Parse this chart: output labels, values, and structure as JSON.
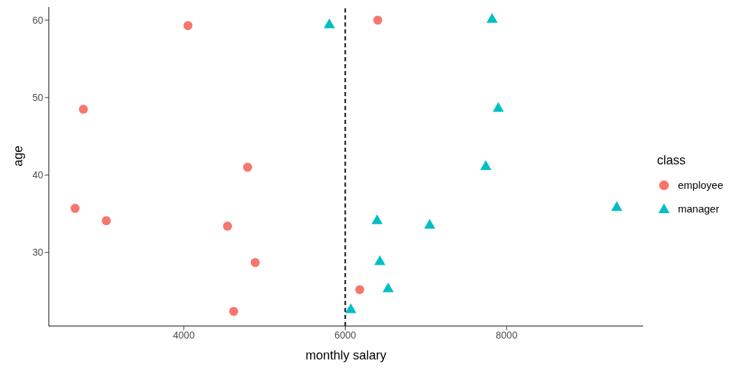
{
  "chart_data": {
    "type": "scatter",
    "xlabel": "monthly salary",
    "ylabel": "age",
    "legend_title": "class",
    "legend": "right",
    "grid": false,
    "xlim": [
      2326,
      9691
    ],
    "xticks": [
      4000,
      6000,
      8000
    ],
    "ylim": [
      20.5,
      61.7
    ],
    "yticks": [
      30,
      40,
      50,
      60
    ],
    "ref_lines": [
      {
        "axis": "x",
        "value": 6000,
        "line_style": "dashed",
        "color": "#000000"
      }
    ],
    "series": [
      {
        "name": "employee",
        "color": "#f8766d",
        "marker": "circle",
        "x": [
          4051,
          6403,
          2755,
          4790,
          2652,
          3039,
          4541,
          4884,
          6180,
          4618
        ],
        "values": [
          59.3,
          60,
          48.5,
          41,
          35.7,
          34.1,
          33.4,
          28.7,
          25.2,
          22.4
        ]
      },
      {
        "name": "manager",
        "color": "#00bfc4",
        "marker": "triangle",
        "x": [
          5803,
          7820,
          7897,
          7742,
          9365,
          6395,
          7047,
          6429,
          6532,
          6069
        ],
        "values": [
          59.5,
          60.2,
          48.7,
          41.2,
          35.9,
          34.2,
          33.6,
          28.9,
          25.4,
          22.7
        ]
      }
    ]
  }
}
